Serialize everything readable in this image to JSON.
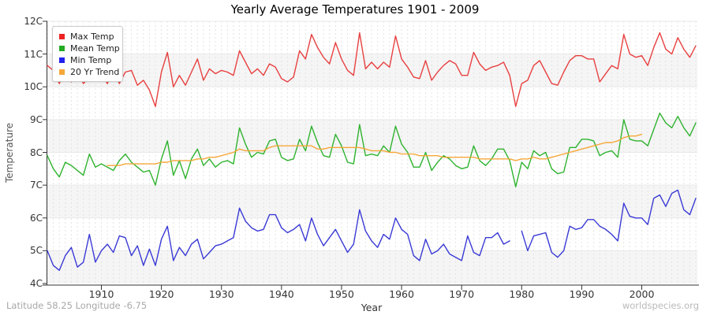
{
  "title": "Yearly Average Temperatures 1901 - 2009",
  "legend": {
    "items": [
      {
        "label": "Max Temp",
        "color": "#ee2222"
      },
      {
        "label": "Mean Temp",
        "color": "#22aa22"
      },
      {
        "label": "Min Temp",
        "color": "#2222ee"
      },
      {
        "label": "20 Yr Trend",
        "color": "#f7a73a"
      }
    ]
  },
  "x_axis": {
    "label": "Year",
    "ticks": [
      "1910",
      "1920",
      "1930",
      "1940",
      "1950",
      "1960",
      "1970",
      "1980",
      "1990",
      "2000"
    ]
  },
  "y_axis": {
    "label": "Temperature",
    "ticks": [
      "12C",
      "11C",
      "10C",
      "9C",
      "8C",
      "7C",
      "6C",
      "5C",
      "4C"
    ]
  },
  "footer": {
    "left": "Latitude 58.25 Longitude -6.75",
    "watermark": "worldspecies.org"
  },
  "chart_data": {
    "type": "line",
    "title": "Yearly Average Temperatures 1901 - 2009",
    "xlabel": "Year",
    "ylabel": "Temperature",
    "xlim": [
      1901,
      2009
    ],
    "ylim": [
      4,
      12
    ],
    "grid": true,
    "legend_position": "top-left",
    "background_bands_c": [
      [
        10,
        11
      ],
      [
        8,
        9
      ],
      [
        6,
        7
      ],
      [
        4,
        5
      ]
    ],
    "notes": "Min Temp has no data point for 1979 (line gap); 20 Yr Trend spans 1911-2000 only.",
    "years": [
      1901,
      1902,
      1903,
      1904,
      1905,
      1906,
      1907,
      1908,
      1909,
      1910,
      1911,
      1912,
      1913,
      1914,
      1915,
      1916,
      1917,
      1918,
      1919,
      1920,
      1921,
      1922,
      1923,
      1924,
      1925,
      1926,
      1927,
      1928,
      1929,
      1930,
      1931,
      1932,
      1933,
      1934,
      1935,
      1936,
      1937,
      1938,
      1939,
      1940,
      1941,
      1942,
      1943,
      1944,
      1945,
      1946,
      1947,
      1948,
      1949,
      1950,
      1951,
      1952,
      1953,
      1954,
      1955,
      1956,
      1957,
      1958,
      1959,
      1960,
      1961,
      1962,
      1963,
      1964,
      1965,
      1966,
      1967,
      1968,
      1969,
      1970,
      1971,
      1972,
      1973,
      1974,
      1975,
      1976,
      1977,
      1978,
      1979,
      1980,
      1981,
      1982,
      1983,
      1984,
      1985,
      1986,
      1987,
      1988,
      1989,
      1990,
      1991,
      1992,
      1993,
      1994,
      1995,
      1996,
      1997,
      1998,
      1999,
      2000,
      2001,
      2002,
      2003,
      2004,
      2005,
      2006,
      2007,
      2008,
      2009
    ],
    "series": [
      {
        "name": "Max Temp",
        "color": "#e84040",
        "values": [
          10.65,
          10.5,
          10.1,
          10.5,
          10.15,
          10.45,
          10.1,
          10.3,
          10.35,
          10.4,
          10.1,
          10.5,
          10.1,
          10.45,
          10.5,
          10.05,
          10.2,
          9.9,
          9.4,
          10.45,
          11.05,
          10.0,
          10.35,
          10.05,
          10.45,
          10.85,
          10.2,
          10.55,
          10.4,
          10.5,
          10.45,
          10.35,
          11.1,
          10.75,
          10.4,
          10.55,
          10.35,
          10.7,
          10.6,
          10.25,
          10.15,
          10.3,
          11.1,
          10.85,
          11.6,
          11.2,
          10.9,
          10.7,
          11.35,
          10.85,
          10.5,
          10.35,
          11.65,
          10.55,
          10.75,
          10.55,
          10.75,
          10.6,
          11.55,
          10.85,
          10.6,
          10.3,
          10.25,
          10.8,
          10.2,
          10.45,
          10.65,
          10.8,
          10.7,
          10.35,
          10.35,
          11.05,
          10.7,
          10.5,
          10.6,
          10.65,
          10.75,
          10.35,
          9.4,
          10.1,
          10.2,
          10.65,
          10.8,
          10.45,
          10.1,
          10.05,
          10.45,
          10.8,
          10.95,
          10.95,
          10.85,
          10.85,
          10.15,
          10.4,
          10.65,
          10.55,
          11.6,
          11.0,
          10.9,
          10.95,
          10.65,
          11.2,
          11.65,
          11.15,
          11.0,
          11.5,
          11.15,
          10.9,
          11.25
        ]
      },
      {
        "name": "Mean Temp",
        "color": "#2fb32f",
        "values": [
          7.9,
          7.5,
          7.25,
          7.7,
          7.6,
          7.45,
          7.3,
          7.95,
          7.55,
          7.65,
          7.55,
          7.45,
          7.75,
          7.95,
          7.7,
          7.55,
          7.4,
          7.45,
          7.0,
          7.8,
          8.35,
          7.3,
          7.75,
          7.2,
          7.8,
          8.1,
          7.6,
          7.8,
          7.55,
          7.7,
          7.75,
          7.65,
          8.75,
          8.25,
          7.85,
          8.0,
          7.95,
          8.35,
          8.4,
          7.85,
          7.75,
          7.8,
          8.4,
          8.05,
          8.8,
          8.3,
          7.9,
          7.85,
          8.55,
          8.2,
          7.7,
          7.65,
          8.85,
          7.9,
          7.95,
          7.9,
          8.2,
          8.0,
          8.8,
          8.25,
          8.0,
          7.55,
          7.55,
          8.0,
          7.45,
          7.7,
          7.9,
          7.8,
          7.6,
          7.5,
          7.55,
          8.2,
          7.75,
          7.6,
          7.8,
          8.1,
          8.1,
          7.75,
          6.95,
          7.7,
          7.5,
          8.05,
          7.9,
          8.0,
          7.5,
          7.35,
          7.4,
          8.15,
          8.15,
          8.4,
          8.4,
          8.35,
          7.9,
          8.0,
          8.05,
          7.85,
          9.0,
          8.4,
          8.35,
          8.35,
          8.2,
          8.7,
          9.2,
          8.9,
          8.75,
          9.1,
          8.75,
          8.5,
          8.9
        ]
      },
      {
        "name": "Min Temp",
        "color": "#3a3ad6",
        "values": [
          5.0,
          4.55,
          4.4,
          4.85,
          5.1,
          4.5,
          4.65,
          5.5,
          4.65,
          5.0,
          5.2,
          4.95,
          5.45,
          5.4,
          4.85,
          5.15,
          4.55,
          5.05,
          4.55,
          5.35,
          5.75,
          4.7,
          5.1,
          4.85,
          5.2,
          5.35,
          4.75,
          4.95,
          5.15,
          5.2,
          5.3,
          5.4,
          6.3,
          5.9,
          5.7,
          5.6,
          5.65,
          6.1,
          6.1,
          5.7,
          5.55,
          5.65,
          5.8,
          5.3,
          6.0,
          5.5,
          5.15,
          5.4,
          5.65,
          5.3,
          4.95,
          5.2,
          6.25,
          5.6,
          5.3,
          5.1,
          5.5,
          5.35,
          6.0,
          5.65,
          5.5,
          4.85,
          4.7,
          5.35,
          4.9,
          5.0,
          5.2,
          4.9,
          4.8,
          4.7,
          5.45,
          4.95,
          4.85,
          5.4,
          5.4,
          5.55,
          5.2,
          5.3,
          null,
          5.6,
          5.0,
          5.45,
          5.5,
          5.55,
          4.95,
          4.8,
          5.0,
          5.75,
          5.65,
          5.7,
          5.95,
          5.95,
          5.75,
          5.65,
          5.5,
          5.3,
          6.45,
          6.05,
          6.0,
          6.0,
          5.8,
          6.6,
          6.7,
          6.35,
          6.75,
          6.85,
          6.25,
          6.1,
          6.6
        ]
      },
      {
        "name": "20 Yr Trend",
        "color": "#f7a73a",
        "values": [
          null,
          null,
          null,
          null,
          null,
          null,
          null,
          null,
          null,
          null,
          7.6,
          7.6,
          7.6,
          7.65,
          7.65,
          7.65,
          7.65,
          7.65,
          7.65,
          7.7,
          7.7,
          7.75,
          7.75,
          7.75,
          7.75,
          7.8,
          7.8,
          7.85,
          7.85,
          7.9,
          7.95,
          8.0,
          8.1,
          8.05,
          8.05,
          8.05,
          8.05,
          8.15,
          8.2,
          8.2,
          8.2,
          8.2,
          8.2,
          8.2,
          8.2,
          8.1,
          8.1,
          8.15,
          8.15,
          8.15,
          8.15,
          8.15,
          8.15,
          8.1,
          8.05,
          8.05,
          8.05,
          8.0,
          8.0,
          7.95,
          7.95,
          7.95,
          7.9,
          7.9,
          7.9,
          7.9,
          7.85,
          7.85,
          7.85,
          7.85,
          7.85,
          7.85,
          7.8,
          7.8,
          7.8,
          7.8,
          7.8,
          7.8,
          7.75,
          7.8,
          7.8,
          7.85,
          7.8,
          7.8,
          7.85,
          7.9,
          7.95,
          8.0,
          8.05,
          8.1,
          8.15,
          8.2,
          8.25,
          8.3,
          8.3,
          8.35,
          8.45,
          8.5,
          8.5,
          8.55,
          null,
          null,
          null,
          null,
          null,
          null,
          null,
          null,
          null
        ]
      }
    ]
  }
}
